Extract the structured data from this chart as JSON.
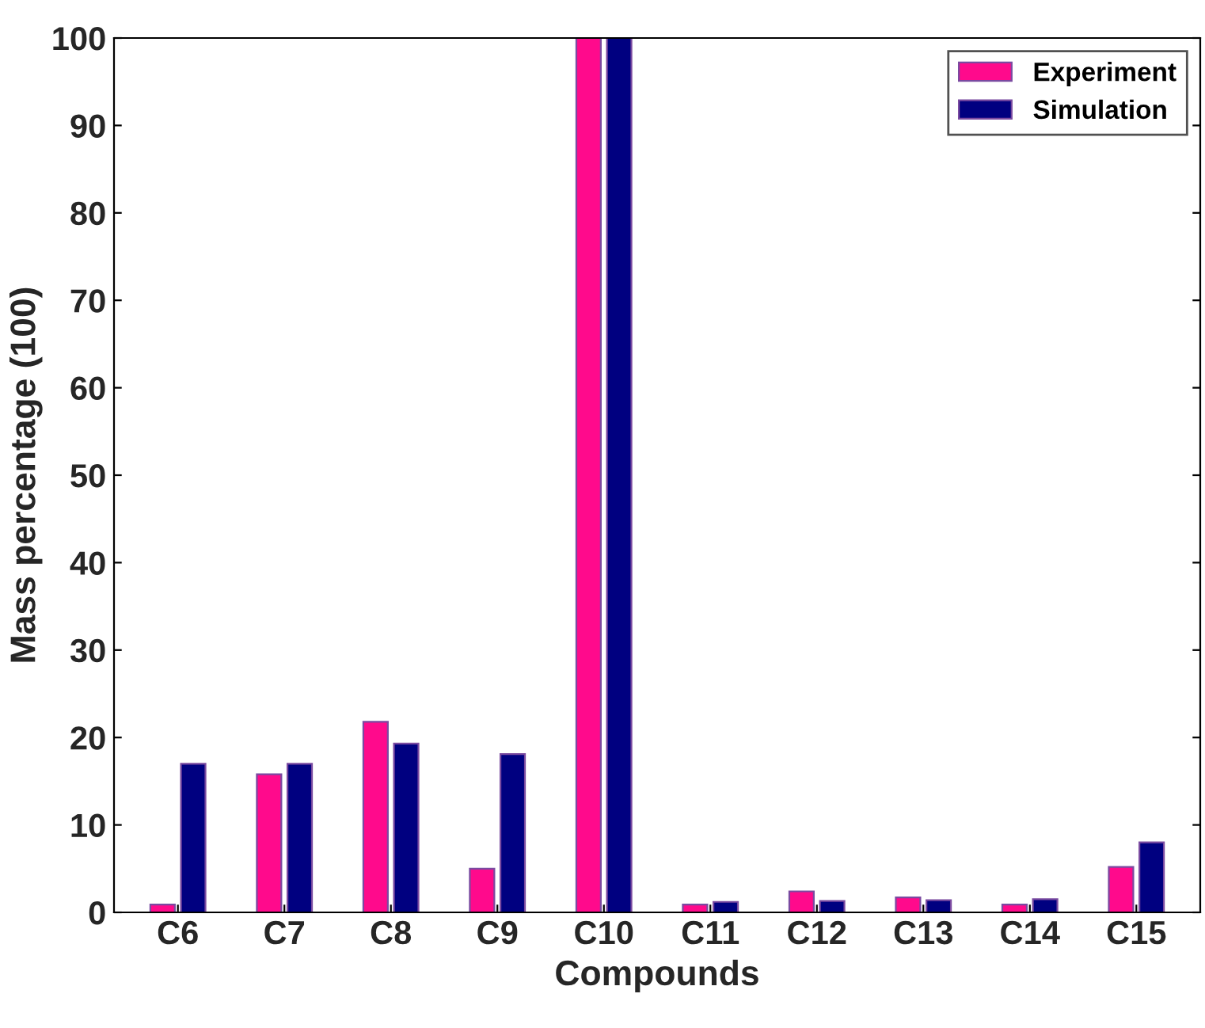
{
  "chart_data": {
    "type": "bar",
    "xlabel": "Compounds",
    "ylabel": "Mass percentage (100)",
    "categories": [
      "C6",
      "C7",
      "C8",
      "C9",
      "C10",
      "C11",
      "C12",
      "C13",
      "C14",
      "C15"
    ],
    "series": [
      {
        "name": "Experiment",
        "color": "#ff0a8c",
        "values": [
          0.9,
          15.8,
          21.8,
          5.0,
          100,
          0.9,
          2.4,
          1.7,
          0.9,
          5.2
        ]
      },
      {
        "name": "Simulation",
        "color": "#000080",
        "values": [
          17.0,
          17.0,
          19.3,
          18.1,
          100,
          1.2,
          1.3,
          1.4,
          1.5,
          8.0
        ]
      }
    ],
    "ylim": [
      0,
      100
    ],
    "yticks": [
      0,
      10,
      20,
      30,
      40,
      50,
      60,
      70,
      80,
      90,
      100
    ],
    "grid": false,
    "legend": "top right"
  }
}
